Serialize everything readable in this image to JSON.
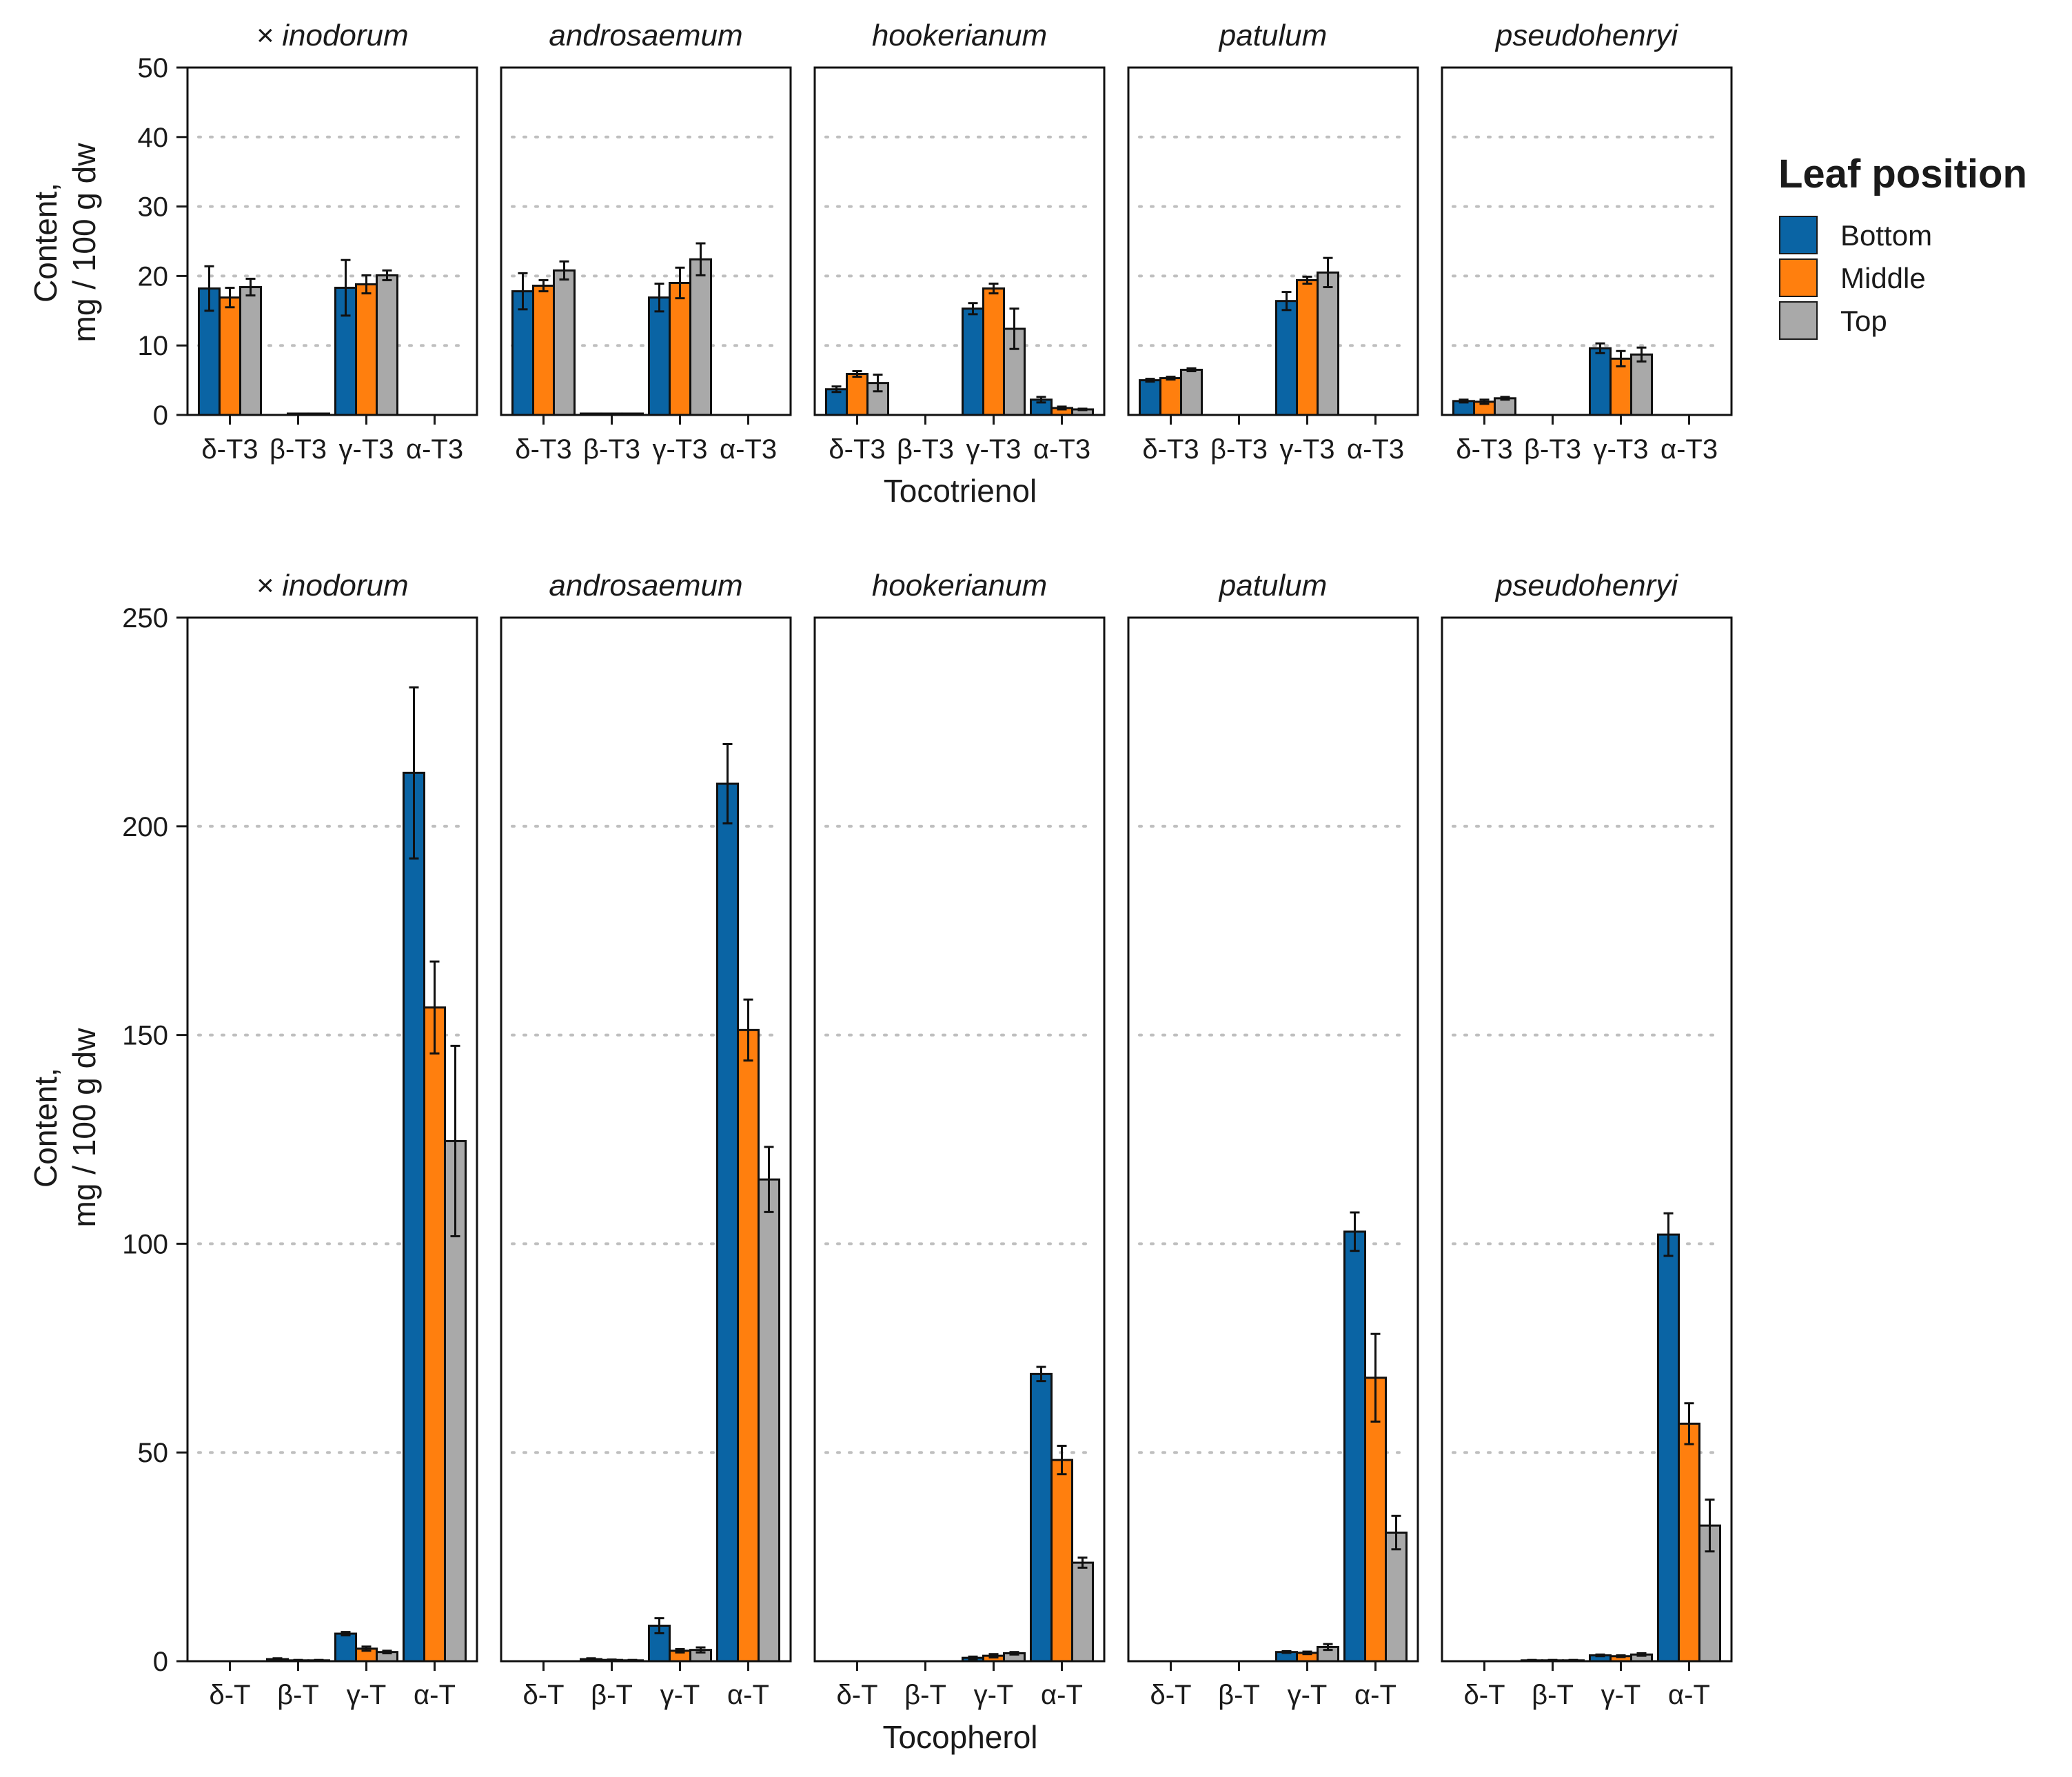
{
  "legend": {
    "title": "Leaf position",
    "items": [
      {
        "name": "Bottom",
        "color": "#0a64a4"
      },
      {
        "name": "Middle",
        "color": "#ff7f0e"
      },
      {
        "name": "Top",
        "color": "#a9a9a9"
      }
    ]
  },
  "chart_data": [
    {
      "id": "tocotrienol",
      "type": "bar",
      "xlabel": "Tocotrienol",
      "ylabel": [
        "Content,",
        "mg / 100 g dw"
      ],
      "ylim": [
        0,
        50
      ],
      "yticks": [
        0,
        10,
        20,
        30,
        40,
        50
      ],
      "ytick_labels": [
        "0",
        "10",
        "20",
        "30",
        "40",
        "50"
      ],
      "gridlines": [
        10,
        20,
        30,
        40
      ],
      "categories": [
        "δ-T3",
        "β-T3",
        "γ-T3",
        "α-T3"
      ],
      "panels": [
        {
          "title": "× inodorum",
          "series": [
            {
              "name": "Bottom",
              "values": [
                18.2,
                0,
                18.3,
                0
              ],
              "errors": [
                3.2,
                0,
                4.0,
                0
              ]
            },
            {
              "name": "Middle",
              "values": [
                16.9,
                0.2,
                18.8,
                0
              ],
              "errors": [
                1.4,
                0,
                1.3,
                0
              ]
            },
            {
              "name": "Top",
              "values": [
                18.4,
                0.2,
                20.1,
                0
              ],
              "errors": [
                1.2,
                0,
                0.7,
                0
              ]
            }
          ]
        },
        {
          "title": "androsaemum",
          "series": [
            {
              "name": "Bottom",
              "values": [
                17.8,
                0.2,
                16.9,
                0
              ],
              "errors": [
                2.6,
                0,
                2.0,
                0
              ]
            },
            {
              "name": "Middle",
              "values": [
                18.6,
                0.2,
                19.0,
                0
              ],
              "errors": [
                0.8,
                0,
                2.2,
                0
              ]
            },
            {
              "name": "Top",
              "values": [
                20.8,
                0.2,
                22.4,
                0
              ],
              "errors": [
                1.3,
                0,
                2.3,
                0
              ]
            }
          ]
        },
        {
          "title": "hookerianum",
          "series": [
            {
              "name": "Bottom",
              "values": [
                3.7,
                0,
                15.3,
                2.2
              ],
              "errors": [
                0.4,
                0,
                0.8,
                0.4
              ]
            },
            {
              "name": "Middle",
              "values": [
                5.9,
                0,
                18.2,
                1.0
              ],
              "errors": [
                0.4,
                0,
                0.7,
                0.2
              ]
            },
            {
              "name": "Top",
              "values": [
                4.6,
                0,
                12.4,
                0.8
              ],
              "errors": [
                1.2,
                0,
                2.9,
                0.1
              ]
            }
          ]
        },
        {
          "title": "patulum",
          "series": [
            {
              "name": "Bottom",
              "values": [
                5.0,
                0,
                16.4,
                0
              ],
              "errors": [
                0.2,
                0,
                1.3,
                0
              ]
            },
            {
              "name": "Middle",
              "values": [
                5.3,
                0,
                19.4,
                0
              ],
              "errors": [
                0.2,
                0,
                0.5,
                0
              ]
            },
            {
              "name": "Top",
              "values": [
                6.5,
                0,
                20.5,
                0
              ],
              "errors": [
                0.2,
                0,
                2.1,
                0
              ]
            }
          ]
        },
        {
          "title": "pseudohenryi",
          "series": [
            {
              "name": "Bottom",
              "values": [
                2.0,
                0,
                9.6,
                0
              ],
              "errors": [
                0.2,
                0,
                0.7,
                0
              ]
            },
            {
              "name": "Middle",
              "values": [
                1.9,
                0,
                8.1,
                0
              ],
              "errors": [
                0.3,
                0,
                1.1,
                0
              ]
            },
            {
              "name": "Top",
              "values": [
                2.4,
                0,
                8.7,
                0
              ],
              "errors": [
                0.2,
                0,
                1.0,
                0
              ]
            }
          ]
        }
      ]
    },
    {
      "id": "tocopherol",
      "type": "bar",
      "xlabel": "Tocopherol",
      "ylabel": [
        "Content,",
        "mg / 100 g dw"
      ],
      "ylim": [
        0,
        250
      ],
      "yticks": [
        0,
        50,
        100,
        150,
        200,
        250
      ],
      "ytick_labels": [
        "0",
        "50",
        "100",
        "150",
        "200",
        "250"
      ],
      "gridlines": [
        50,
        100,
        150,
        200
      ],
      "categories": [
        "δ-T",
        "β-T",
        "γ-T",
        "α-T"
      ],
      "panels": [
        {
          "title": "× inodorum",
          "series": [
            {
              "name": "Bottom",
              "values": [
                0,
                0.5,
                6.6,
                212.8
              ],
              "errors": [
                0,
                0.2,
                0.4,
                20.5
              ]
            },
            {
              "name": "Middle",
              "values": [
                0,
                0.2,
                3.0,
                156.6
              ],
              "errors": [
                0,
                0.1,
                0.5,
                11.0
              ]
            },
            {
              "name": "Top",
              "values": [
                0,
                0.2,
                2.2,
                124.6
              ],
              "errors": [
                0,
                0.1,
                0.3,
                22.8
              ]
            }
          ]
        },
        {
          "title": "androsaemum",
          "series": [
            {
              "name": "Bottom",
              "values": [
                0,
                0.5,
                8.5,
                210.2
              ],
              "errors": [
                0,
                0.2,
                1.8,
                9.5
              ]
            },
            {
              "name": "Middle",
              "values": [
                0,
                0.3,
                2.5,
                151.2
              ],
              "errors": [
                0,
                0.1,
                0.4,
                7.3
              ]
            },
            {
              "name": "Top",
              "values": [
                0,
                0.2,
                2.7,
                115.4
              ],
              "errors": [
                0,
                0.1,
                0.6,
                7.8
              ]
            }
          ]
        },
        {
          "title": "hookerianum",
          "series": [
            {
              "name": "Bottom",
              "values": [
                0,
                0,
                0.8,
                68.8
              ],
              "errors": [
                0,
                0,
                0.3,
                1.7
              ]
            },
            {
              "name": "Middle",
              "values": [
                0,
                0,
                1.3,
                48.2
              ],
              "errors": [
                0,
                0,
                0.4,
                3.4
              ]
            },
            {
              "name": "Top",
              "values": [
                0,
                0,
                1.9,
                23.6
              ],
              "errors": [
                0,
                0,
                0.3,
                1.2
              ]
            }
          ]
        },
        {
          "title": "patulum",
          "series": [
            {
              "name": "Bottom",
              "values": [
                0,
                0,
                2.2,
                102.9
              ],
              "errors": [
                0,
                0,
                0.2,
                4.6
              ]
            },
            {
              "name": "Middle",
              "values": [
                0,
                0,
                2.0,
                67.9
              ],
              "errors": [
                0,
                0,
                0.3,
                10.5
              ]
            },
            {
              "name": "Top",
              "values": [
                0,
                0,
                3.4,
                30.8
              ],
              "errors": [
                0,
                0,
                0.7,
                4.0
              ]
            }
          ]
        },
        {
          "title": "pseudohenryi",
          "series": [
            {
              "name": "Bottom",
              "values": [
                0,
                0.2,
                1.4,
                102.2
              ],
              "errors": [
                0,
                0.1,
                0.2,
                5.1
              ]
            },
            {
              "name": "Middle",
              "values": [
                0,
                0.2,
                1.2,
                56.9
              ],
              "errors": [
                0,
                0.1,
                0.2,
                4.9
              ]
            },
            {
              "name": "Top",
              "values": [
                0,
                0.2,
                1.6,
                32.5
              ],
              "errors": [
                0,
                0.1,
                0.3,
                6.2
              ]
            }
          ]
        }
      ]
    }
  ]
}
